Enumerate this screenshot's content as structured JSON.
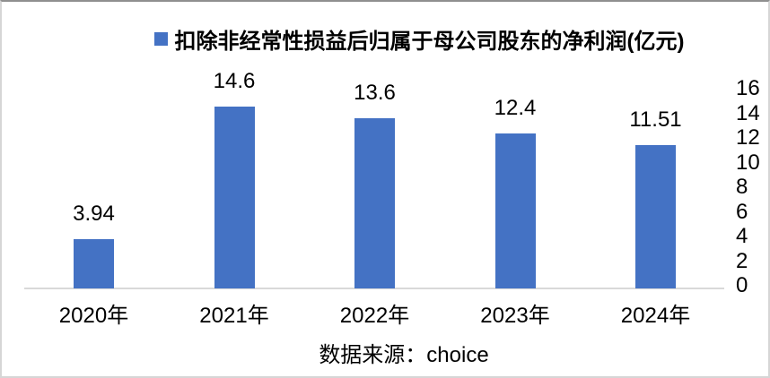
{
  "chart_data": {
    "type": "bar",
    "title": "扣除非经常性损益后归属于母公司股东的净利润(亿元)",
    "categories": [
      "2020年",
      "2021年",
      "2022年",
      "2023年",
      "2024年"
    ],
    "values": [
      3.94,
      14.6,
      13.6,
      12.4,
      11.51
    ],
    "data_labels": [
      "3.94",
      "14.6",
      "13.6",
      "12.4",
      "11.51"
    ],
    "ylim": [
      0,
      16
    ],
    "yticks": [
      0,
      2,
      4,
      6,
      8,
      10,
      12,
      14,
      16
    ],
    "legend_position": "top-center",
    "grid": false,
    "bar_color": "#4472C4",
    "axis_line_color": "#D9D9D9",
    "label_color": "#000000"
  },
  "source": {
    "label": "数据来源：choice"
  }
}
